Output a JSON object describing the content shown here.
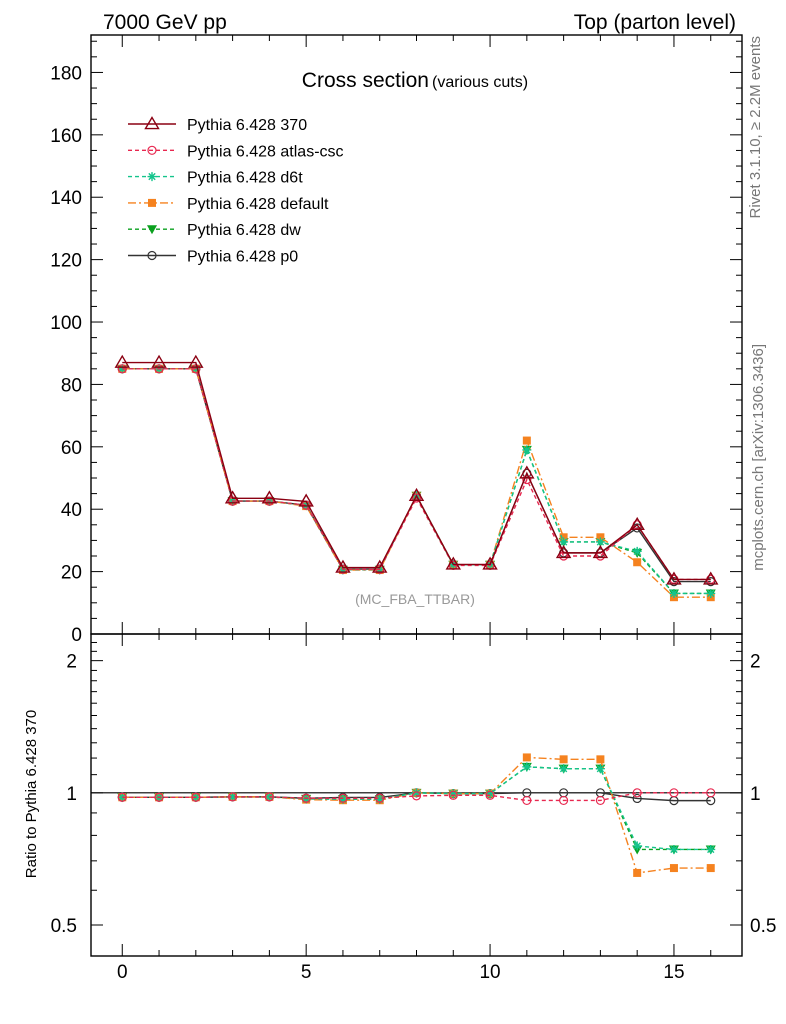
{
  "header": {
    "left": "7000 GeV pp",
    "right": "Top (parton level)"
  },
  "side_labels": {
    "events": "Rivet 3.1.10, ≥ 2.2M events",
    "source": "mcplots.cern.ch [arXiv:1306.3436]"
  },
  "chart_data": [
    {
      "type": "line",
      "title": "Cross section",
      "subtitle": "(various cuts)",
      "watermark": "(MC_FBA_TTBAR)",
      "xlim": [
        -0.85,
        16.85
      ],
      "ylim": [
        0,
        192
      ],
      "yticks": [
        0,
        20,
        40,
        60,
        80,
        100,
        120,
        140,
        160,
        180
      ],
      "xticks": [
        0,
        5,
        10,
        15
      ],
      "legend_position": "top-left",
      "x": [
        0,
        1,
        2,
        3,
        4,
        5,
        6,
        7,
        8,
        9,
        10,
        11,
        12,
        13,
        14,
        15,
        16
      ],
      "series": [
        {
          "name": "Pythia 6.428 370",
          "color": "#8b0012",
          "dash": "",
          "marker": "triangle-open",
          "values": [
            87.0,
            87.0,
            87.0,
            43.5,
            43.5,
            42.5,
            21.3,
            21.3,
            44.3,
            22.3,
            22.3,
            51.5,
            26.0,
            26.0,
            35.0,
            17.5,
            17.5
          ]
        },
        {
          "name": "Pythia 6.428 atlas-csc",
          "color": "#e8274f",
          "dash": "4,3",
          "marker": "circle-open",
          "values": [
            85.0,
            85.0,
            85.0,
            42.6,
            42.6,
            41.3,
            20.7,
            20.7,
            43.6,
            22.0,
            22.0,
            49.5,
            25.0,
            25.0,
            35.0,
            17.5,
            17.5
          ]
        },
        {
          "name": "Pythia 6.428 d6t",
          "color": "#14c48c",
          "dash": "4,3",
          "marker": "asterisk",
          "values": [
            85.0,
            85.0,
            85.0,
            42.6,
            42.6,
            41.2,
            20.6,
            20.6,
            44.3,
            22.2,
            22.2,
            59.0,
            29.5,
            29.5,
            26.5,
            13.0,
            13.0
          ]
        },
        {
          "name": "Pythia 6.428 default",
          "color": "#f5821f",
          "dash": "8,3,2,3",
          "marker": "square",
          "values": [
            85.0,
            85.0,
            85.0,
            42.6,
            42.6,
            41.0,
            20.5,
            20.5,
            44.3,
            22.2,
            22.2,
            62.0,
            31.0,
            31.0,
            23.0,
            11.8,
            11.8
          ]
        },
        {
          "name": "Pythia 6.428 dw",
          "color": "#0aa01e",
          "dash": "4,3",
          "marker": "triangle-down",
          "values": [
            85.0,
            85.0,
            85.0,
            42.6,
            42.6,
            41.2,
            20.6,
            20.6,
            44.3,
            22.2,
            22.2,
            59.0,
            29.5,
            29.5,
            26.0,
            13.0,
            13.0
          ]
        },
        {
          "name": "Pythia 6.428 p0",
          "color": "#333333",
          "dash": "",
          "marker": "circle-open",
          "values": [
            85.0,
            85.0,
            85.0,
            42.6,
            42.6,
            41.3,
            20.8,
            20.8,
            44.3,
            22.2,
            22.2,
            51.5,
            26.0,
            26.0,
            34.0,
            16.8,
            16.8
          ]
        }
      ]
    },
    {
      "type": "line",
      "ylabel": "Ratio to Pythia 6.428 370",
      "scale": "log",
      "xlim": [
        -0.85,
        16.85
      ],
      "ylim": [
        0.425,
        2.3
      ],
      "yticks": [
        0.5,
        1,
        2
      ],
      "xticks": [
        0,
        5,
        10,
        15
      ],
      "reference": 1,
      "x": [
        0,
        1,
        2,
        3,
        4,
        5,
        6,
        7,
        8,
        9,
        10,
        11,
        12,
        13,
        14,
        15,
        16
      ],
      "series": [
        {
          "name": "Pythia 6.428 atlas-csc",
          "color": "#e8274f",
          "dash": "4,3",
          "marker": "circle-open",
          "values": [
            0.977,
            0.977,
            0.977,
            0.979,
            0.979,
            0.972,
            0.972,
            0.972,
            0.984,
            0.987,
            0.987,
            0.961,
            0.961,
            0.961,
            1.0,
            1.0,
            1.0
          ]
        },
        {
          "name": "Pythia 6.428 d6t",
          "color": "#14c48c",
          "dash": "4,3",
          "marker": "asterisk",
          "values": [
            0.977,
            0.977,
            0.977,
            0.979,
            0.979,
            0.969,
            0.967,
            0.967,
            1.0,
            0.996,
            0.996,
            1.146,
            1.135,
            1.135,
            0.757,
            0.743,
            0.743
          ]
        },
        {
          "name": "Pythia 6.428 default",
          "color": "#f5821f",
          "dash": "8,3,2,3",
          "marker": "square",
          "values": [
            0.977,
            0.977,
            0.977,
            0.979,
            0.979,
            0.965,
            0.962,
            0.962,
            1.0,
            0.996,
            0.996,
            1.204,
            1.192,
            1.192,
            0.657,
            0.674,
            0.674
          ]
        },
        {
          "name": "Pythia 6.428 dw",
          "color": "#0aa01e",
          "dash": "4,3",
          "marker": "triangle-down",
          "values": [
            0.977,
            0.977,
            0.977,
            0.979,
            0.979,
            0.969,
            0.967,
            0.967,
            1.0,
            0.996,
            0.996,
            1.146,
            1.135,
            1.135,
            0.743,
            0.743,
            0.743
          ]
        },
        {
          "name": "Pythia 6.428 p0",
          "color": "#333333",
          "dash": "",
          "marker": "circle-open",
          "values": [
            0.977,
            0.977,
            0.977,
            0.979,
            0.979,
            0.972,
            0.976,
            0.976,
            1.0,
            0.996,
            0.996,
            1.0,
            1.0,
            1.0,
            0.971,
            0.96,
            0.96
          ]
        }
      ]
    }
  ]
}
